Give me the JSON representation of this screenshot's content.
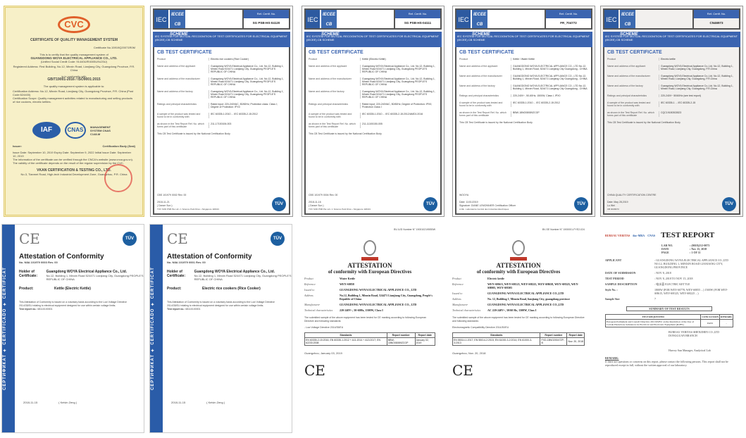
{
  "cvc": {
    "logo": "CVC",
    "title": "CERTIFICATE OF QUALITY MANAGEMENT SYSTEM",
    "cert_no": "Certificate No.15919Q20071R0M",
    "intro": "This is to certify that the quality management system of",
    "company": "GUANGDONG WOYA ELECTRICAL APPLIANCE CO., LTD.",
    "credit": "(Unified Social Credit Code: 91440UIR4005U9U20U)",
    "address": "Registered Address: First Building, No.12, Minxin Road, Lianjiang City, Guangdong Province, P.R. China",
    "conform": "is in conformity with",
    "standard": "GB/T19001-2016 / ISO9001:2015",
    "applicable": "The quality management system is applicable to:",
    "cert_address": "Certification Address: No.12, Minxin Road, Lianjiang City, Guangdong Province, P.R. China (Post Code:524400)",
    "scope": "Certification Scope: Quality management activities related to manufacturing and selling products of rice cookers, electric kettles.",
    "iaf": "IAF",
    "cnas": "CNAS",
    "ms": "MANAGEMENT SYSTEM CNAS C148-M",
    "issuer": "Issuer:",
    "seal": "Certification Body (Seal)",
    "dates": "Issue Date: September 10, 2019   Expiry Date: September 9, 2022   Initial Issue Date: September 10, 2019",
    "note": "The information of the certificate can be verified through the CNCA's website (www.cnca.gov.cn). The validity of the certificate depends on the result of the regular supervision by the CVC.",
    "body": "VKAN CERTIFICATION & TESTING CO., LTD.",
    "body_addr": "No.3, Tianmei Road, High-tech Industrial Development Zone, Guangzhou, P.R. China"
  },
  "cb_common": {
    "iec": "IEC",
    "iecee": "IECEE CB SCHEME",
    "ref_label": "Ref. Certif. No.",
    "system": "IEC SYSTEM FOR MUTUAL RECOGNITION OF TEST CERTIFICATES FOR ELECTRICAL EQUIPMENT (IECEE) CB SCHEME",
    "title": "CB TEST CERTIFICATE",
    "labels": [
      "Product",
      "Name and address of the applicant",
      "Name and address of the manufacturer",
      "Name and address of the factory",
      "Ratings and principal characteristics",
      "Model/type Ref.",
      "A sample of the product was tested and found to be in conformity with",
      "as shown in the Test Report Ref. No. which forms part of this certificate"
    ],
    "issued": "This CB Test Certificate is issued by the National Certification Body",
    "tuv": "TÜV"
  },
  "cb": [
    {
      "ref": "SG PSB-HS-04120",
      "product": "Electric rice cookers (Rice Cooker)",
      "applicant": "Guangdong WOYA Electrical Appliance Co., Ltd. No.12, Building 1, Minxin Road 524471 Lianjiang City, Guangdong PEOPLE'S REPUBLIC OF CHINA",
      "ratings": "Rated input: 220-240VAC, 50/60Hz; Protection class: Class I; Degree of Protection: IPX0",
      "standards": "IEC 60335-1:2010 ... IEC 60335-2-15:2012",
      "report": "211-17100106-003",
      "doc": "CBS 101979 0002 Rev. 00",
      "date": "2018-11-21",
      "sign": "( Dance Sun )",
      "footer": "TÜV SÜD PSB Pte Ltd • 1 Science Park Drive • Singapore 118221"
    },
    {
      "ref": "SG PSB-HS-04111",
      "product": "Kettle (Electric Kettle)",
      "applicant": "Guangdong WOYA Electrical Appliance Co., Ltd. No.12, Building 1, Minxin Road 524471 Lianjiang City, Guangdong PEOPLE'S REPUBLIC OF CHINA",
      "ratings": "Rated input: 220-240VAC, 50/60Hz; Degree of Protection: IPX0; Protection Class: I",
      "standards": "IEC 60335-1:2010 ... IEC 60335-2-15:2012/AMD1:2016",
      "report": "211-11100150-005",
      "doc": "CBS 101979 0004 Rev. 00",
      "date": "2018-11-16",
      "sign": "( Dance Sun )",
      "footer": "TÜV SÜD PSB Pte Ltd • 1 Science Park Drive • Singapore 118221"
    },
    {
      "ref": "FR_704772",
      "product": "Kettle / Water Kettle",
      "applicant": "GUANGDONG WOYA ELECTRICAL APPLIANCE CO., LTD No.12, Building 1, Minxin Road, 524471 Lianjiang City Guangdong - CHINA",
      "ratings": "220-240V~, 50-60Hz, 1500W, Class I, IPX0",
      "standards": "IEC 60335-1:2010 ... IEC 60335-2-15:2012",
      "report": "BBW-18NO08089ZCGP",
      "doc": "WOOYA",
      "date": "Date: 11/01/2019",
      "sign": "Signature: DIANE LEMONNIER Certification Officer",
      "footer": "LCIE - Laboratoire Central des Industries Electriques"
    },
    {
      "ref": "CN46973",
      "product": "Electric kettle",
      "applicant": "Guangdong WOYA Electrical Appliance Co.,Ltd. No.12, Building 1, Minxin Road, Lianjiang City, Guangdong, P.R.China",
      "ratings": "220-240V~ 50/60Hz (see test report)",
      "standards": "IEC 60335-1 ... IEC 60335-2-15",
      "report": "CQC19180302823",
      "doc": "CHINA QUALITY CERTIFICATION CENTRE",
      "date": "Date: May 28,2019",
      "sign": "Lu Wei",
      "footer": "CB 0049973"
    }
  ],
  "tuv_att": [
    {
      "strip": "СЕРТИФИКАТ ✦ CERTIFICADO ✦ CERTIFICAT",
      "ce": "CE",
      "title": "Attestation of Conformity",
      "no": "No. N8A 101979 0003 Rev. 00",
      "holder_label": "Holder of Certificate:",
      "holder": "Guangdong WOYA Electrical Appliance Co., Ltd.",
      "holder_addr": "No.12, Building 1, Minxin Road 524471 Lianjiang City, Guangdong PEOPLE'S REPUBLIC OF CHINA",
      "product_label": "Product:",
      "product": "Kettle (Electric Kettle)",
      "body": "This Attestation of Conformity is issued on a voluntary basis according to the Low Voltage Directive 2014/35/EU relating to electrical equipment designed for use within certain voltage limits.",
      "test_label": "Test report no.:",
      "test": "68110100001",
      "date": "2018-11-15",
      "sign": "( Kelvin Zeng )"
    },
    {
      "strip": "СЕРТИФИКАТ ✦ CERTIFICADO ✦ CERTIFICAT",
      "ce": "CE",
      "title": "Attestation of Conformity",
      "no": "No. N8A 101979 0001 Rev. 00",
      "holder_label": "Holder of Certificate:",
      "holder": "Guangdong WOYA Electrical Appliance Co., Ltd.",
      "holder_addr": "No.12, Building 1, Minxin Road 524471 Lianjiang City, Guangdong PEOPLE'S REPUBLIC OF CHINA",
      "product_label": "Product:",
      "product": "Electric rice cookers (Rice Cooker)",
      "body": "This Attestation of Conformity is issued on a voluntary basis according to the Low Voltage Directive 2014/35/EU relating to electrical equipment designed for use within certain voltage limits.",
      "test_label": "Test report no.:",
      "test": "68110100001",
      "date": "2018-11-15",
      "sign": "( Kelvin Zeng )"
    }
  ],
  "bv": [
    {
      "number": "BV-LVD Number  N° 1900102195SBW",
      "title": "ATTESTATION",
      "subtitle": "of conformity with European Directives",
      "rows": [
        [
          "Product",
          "Water Kettle"
        ],
        [
          "Reference",
          "WEY-S0858"
        ],
        [
          "Issued to",
          "GUANGDONG WOYA ELECTRICAL APPLIANCE CO., LTD"
        ],
        [
          "Address",
          "No.12, Building 1, Minxin Road, 524471 Lianjiang City, Guangdong, People's Republic of China"
        ],
        [
          "Manufacturer",
          "GUANGDONG WOYA ELECTRICAL APPLIANCE CO., LTD"
        ],
        [
          "Technical characteristics",
          "220-240V~, 50-60Hz, 1500W, Class I"
        ]
      ],
      "tested": "The submitted sample of the above equipment has been tested for CE marking according to following European Directive and following standards:",
      "directive": "- Low Voltage Directive 2014/35/EU",
      "th": [
        "Standards",
        "Report number",
        "Report date"
      ],
      "td": [
        "EN 60335-2-15:2016; EN 60335-1:2012 + A11:2014 + A13:2017; EN 62233:2008",
        "BBW-18NO08089ZCGP",
        "January 02, 2019"
      ],
      "place": "Guangzhou, January 03, 2019",
      "ce": "CE"
    },
    {
      "number": "BV-SE Number  N° 1900001-FYE2-024",
      "title": "ATTESTATION",
      "subtitle": "of conformity with European Directives",
      "rows": [
        [
          "Product",
          "Electric kettle"
        ],
        [
          "Reference",
          "WEY-SH615, WEY-SH125, WEY-SH225, WEY-SH658, WEY-SH325, WEY-SH005, WEY-SH305"
        ],
        [
          "Issued to",
          "GUANGDONG WOYA ELECTRICAL APPLIANCE CO.,LTD"
        ],
        [
          "Address",
          "No. 12, Building 1, Minxin Road, lianjiang City, guangdong province"
        ],
        [
          "Manufacturer",
          "GUANGDONG WOYA ELECTRICAL APPLIANCE CO.,LTD"
        ],
        [
          "Technical characteristics",
          "AC 220-240V~, 50/60 Hz, 1500W, Class I"
        ]
      ],
      "tested": "The submitted sample of the above equipment has been tested for CE marking according to following European Directive and following standards:",
      "directive": "Electromagnetic Compatibility Directive 2014/30/EU",
      "th": [
        "Standards",
        "Report number",
        "Report date"
      ],
      "td": [
        "EN 55014-1:2017; EN 55014-2:2015; EN 61000-3-2:2014; EN 61000-3-3:2013",
        "FXD-18NO20047ZP-B",
        "Nov. 20, 2018"
      ],
      "place": "Guangzhou, Nov. 20, 2018",
      "ce": "CE"
    }
  ],
  "report": {
    "title": "TEST REPORT",
    "logos": [
      "BUREAU VERITAS",
      "ilac-MRA",
      "CNAS"
    ],
    "meta": [
      [
        "LAB NO.",
        ": (0018)212-0073"
      ],
      [
        "DATE",
        ": Nov 15, 2018"
      ],
      [
        "PAGE",
        ": 1 OF 11"
      ]
    ],
    "rows": [
      [
        "APPLICANT",
        ": GUANGDONG WOYA ELECTRICAL APPLIANCE CO.,LTD  NO.12, BUILDING 1, MINXIN ROAD LIANJIANG CITY, GUANGDONG PROVINCE"
      ],
      [
        "DATE OF SUBMISSION",
        ": NOV 8, 2018"
      ],
      [
        "TEST PERIOD",
        ": NOV 8, 2018 TO NOV 15, 2018"
      ],
      [
        "SAMPLE DESCRIPTION",
        ": 电水壶  ELECTRIC KETTLE"
      ],
      [
        "Style No. :",
        "1800W (FOR WEY-S0778, WEY-S0855 ...) 1500W (FOR WEY-SH615, WEY-SH125, WEY-SH225 ...)"
      ],
      [
        "Sample Size",
        "7"
      ]
    ],
    "summary": "SUMMARY OF TEST RESULTS",
    "th": [
      "TEST REQUESTED",
      "CONCLUSION",
      "REMARK"
    ],
    "td": [
      "European Parliament and Council Directive 2011/65/EU on the Restriction of the Use of Certain Hazardous Substances in Electrical and Electronic Equipment (RoHS)",
      "PASS",
      "-"
    ],
    "lab": "BUREAU VERITAS SHENZHEN CO.,LTD DONGGUAN BRANCH",
    "signer": "Harvey Sun Manager, Analytical Lab",
    "remark_label": "REMARK:",
    "remark": "If there are questions or concerns on this report, please contact the following persons. This report shall not be reproduced except in full, without the written approval of our laboratory."
  }
}
